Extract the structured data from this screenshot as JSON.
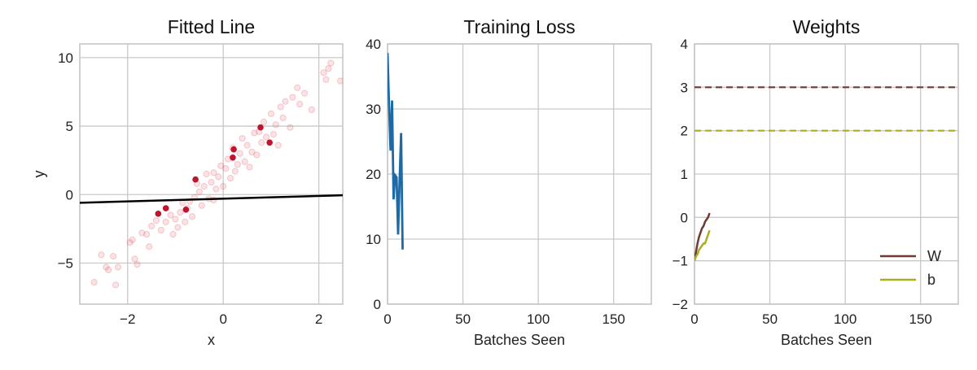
{
  "chart_data": [
    {
      "type": "scatter",
      "title": "Fitted Line",
      "xlabel": "x",
      "ylabel": "y",
      "xlim": [
        -3,
        2.5
      ],
      "ylim": [
        -8,
        11
      ],
      "xticks": [
        -2,
        0,
        2
      ],
      "xtick_labels": [
        "−2",
        "0",
        "2"
      ],
      "yticks": [
        -5,
        0,
        5,
        10
      ],
      "ytick_labels": [
        "−5",
        "0",
        "5",
        "10"
      ],
      "grid": true,
      "colors": {
        "points": "#e0404f",
        "highlight": "#c0142c",
        "fit": "#000000"
      },
      "points": [
        [
          -2.7,
          -6.4
        ],
        [
          -2.55,
          -4.4
        ],
        [
          -2.45,
          -5.3
        ],
        [
          -2.4,
          -5.5
        ],
        [
          -2.3,
          -4.5
        ],
        [
          -2.25,
          -6.6
        ],
        [
          -2.2,
          -5.3
        ],
        [
          -1.9,
          -3.3
        ],
        [
          -1.85,
          -4.7
        ],
        [
          -1.95,
          -3.5
        ],
        [
          -1.7,
          -2.8
        ],
        [
          -1.8,
          -5.1
        ],
        [
          -1.6,
          -2.9
        ],
        [
          -1.5,
          -2.3
        ],
        [
          -1.55,
          -3.8
        ],
        [
          -1.4,
          -1.9
        ],
        [
          -1.3,
          -2.6
        ],
        [
          -1.2,
          -2.0
        ],
        [
          -1.1,
          -1.5
        ],
        [
          -1.0,
          -1.8
        ],
        [
          -0.95,
          -2.4
        ],
        [
          -0.9,
          -1.3
        ],
        [
          -0.85,
          -0.6
        ],
        [
          -0.8,
          -2.0
        ],
        [
          -0.7,
          -0.5
        ],
        [
          -0.65,
          -1.6
        ],
        [
          -0.6,
          -0.2
        ],
        [
          -0.5,
          0.2
        ],
        [
          -0.45,
          -0.8
        ],
        [
          -0.4,
          0.6
        ],
        [
          -0.35,
          1.5
        ],
        [
          -0.3,
          -0.3
        ],
        [
          -0.25,
          0.9
        ],
        [
          -0.2,
          1.6
        ],
        [
          -0.15,
          0.4
        ],
        [
          -0.1,
          1.3
        ],
        [
          -0.05,
          2.1
        ],
        [
          0.0,
          0.6
        ],
        [
          0.05,
          1.9
        ],
        [
          0.1,
          2.6
        ],
        [
          0.15,
          1.2
        ],
        [
          0.2,
          3.4
        ],
        [
          0.3,
          2.2
        ],
        [
          0.35,
          3.0
        ],
        [
          0.4,
          4.1
        ],
        [
          0.45,
          2.4
        ],
        [
          0.5,
          3.6
        ],
        [
          0.6,
          3.1
        ],
        [
          0.65,
          4.5
        ],
        [
          0.7,
          2.9
        ],
        [
          0.8,
          3.8
        ],
        [
          0.85,
          5.3
        ],
        [
          0.9,
          4.2
        ],
        [
          1.0,
          5.9
        ],
        [
          1.05,
          4.4
        ],
        [
          1.1,
          5.1
        ],
        [
          1.2,
          6.4
        ],
        [
          1.25,
          5.6
        ],
        [
          1.3,
          6.8
        ],
        [
          1.4,
          4.9
        ],
        [
          1.45,
          7.1
        ],
        [
          1.55,
          7.8
        ],
        [
          1.6,
          6.6
        ],
        [
          1.7,
          7.4
        ],
        [
          1.85,
          6.2
        ],
        [
          2.1,
          8.9
        ],
        [
          2.15,
          8.4
        ],
        [
          2.2,
          9.2
        ],
        [
          2.25,
          9.6
        ],
        [
          2.45,
          8.3
        ],
        [
          -1.05,
          -2.9
        ],
        [
          -0.75,
          -1.0
        ],
        [
          -0.55,
          0.8
        ],
        [
          0.25,
          1.7
        ],
        [
          0.55,
          2.0
        ],
        [
          1.15,
          3.6
        ],
        [
          0.75,
          4.6
        ],
        [
          -0.2,
          -0.4
        ]
      ],
      "highlighted_points": [
        [
          0.78,
          4.9
        ],
        [
          0.97,
          3.8
        ],
        [
          0.22,
          3.3
        ],
        [
          0.2,
          2.7
        ],
        [
          -0.58,
          1.1
        ],
        [
          -1.2,
          -1.0
        ],
        [
          -1.36,
          -1.4
        ],
        [
          -0.78,
          -1.1
        ]
      ],
      "fit_line": {
        "slope": 0.1,
        "intercept": -0.3
      }
    },
    {
      "type": "line",
      "title": "Training Loss",
      "xlabel": "Batches Seen",
      "ylabel": "",
      "xlim": [
        0,
        175
      ],
      "ylim": [
        0,
        40
      ],
      "xticks": [
        0,
        50,
        100,
        150
      ],
      "yticks": [
        0,
        10,
        20,
        30,
        40
      ],
      "grid": true,
      "colors": {
        "line": "#1f6aa5"
      },
      "x": [
        0,
        1,
        2,
        3,
        4,
        5,
        6,
        7,
        8,
        9,
        10
      ],
      "values": [
        38.6,
        30.5,
        23.6,
        31.3,
        16.1,
        19.8,
        19.5,
        10.7,
        19.0,
        26.3,
        8.4
      ]
    },
    {
      "type": "line",
      "title": "Weights",
      "xlabel": "Batches Seen",
      "ylabel": "",
      "xlim": [
        0,
        175
      ],
      "ylim": [
        -2,
        4
      ],
      "xticks": [
        0,
        50,
        100,
        150
      ],
      "yticks": [
        -2,
        -1,
        0,
        1,
        2,
        3,
        4
      ],
      "ytick_labels": [
        "−2",
        "−1",
        "0",
        "1",
        "2",
        "3",
        "4"
      ],
      "grid": true,
      "legend": "bottom-right",
      "x": [
        0,
        1,
        2,
        3,
        4,
        5,
        6,
        7,
        8,
        9,
        10
      ],
      "series": [
        {
          "name": "W",
          "color": "#6e3a36",
          "values": [
            -1.0,
            -0.8,
            -0.6,
            -0.45,
            -0.35,
            -0.25,
            -0.2,
            -0.1,
            -0.05,
            0.0,
            0.1
          ],
          "true_value": 3
        },
        {
          "name": "b",
          "color": "#a9ae22",
          "values": [
            -1.0,
            -0.9,
            -0.85,
            -0.75,
            -0.7,
            -0.65,
            -0.6,
            -0.6,
            -0.5,
            -0.4,
            -0.3
          ],
          "true_value": 2
        }
      ]
    }
  ]
}
